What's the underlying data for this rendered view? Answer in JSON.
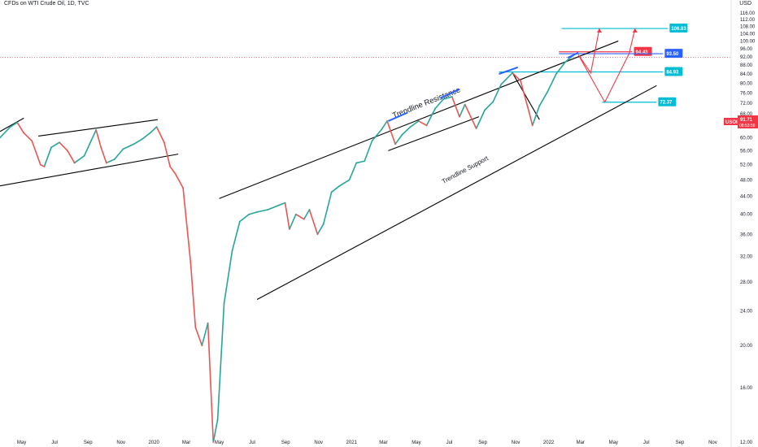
{
  "header": {
    "symbol_title": "CFDs on WTI Crude Oil, 1D, TVC",
    "currency": "USD"
  },
  "price_badge": {
    "label": "USOIL",
    "value": "91.71",
    "countdown": "08:53:59",
    "color": "#f23645"
  },
  "chart_data": {
    "type": "line",
    "title": "CFDs on WTI Crude Oil, 1D, TVC",
    "xlabel": "",
    "ylabel": "",
    "log_scale": true,
    "grid": false,
    "x_ticks": [
      "May",
      "Jul",
      "Sep",
      "Nov",
      "2020",
      "Mar",
      "May",
      "Jul",
      "Sep",
      "Nov",
      "2021",
      "Mar",
      "May",
      "Jul",
      "Sep",
      "Nov",
      "2022",
      "Mar",
      "May",
      "Jul",
      "Sep",
      "Nov"
    ],
    "y_ticks": [
      12.0,
      16.0,
      20.0,
      24.0,
      28.0,
      32.0,
      36.0,
      40.0,
      44.0,
      48.0,
      52.0,
      56.0,
      60.0,
      64.0,
      68.0,
      72.0,
      76.0,
      80.0,
      84.0,
      88.0,
      92.0,
      96.0,
      100.0,
      104.0,
      108.0,
      112.0,
      116.0
    ],
    "ylim": [
      12.0,
      120.0
    ],
    "xlim": [
      "2019-03-22",
      "2022-12-05"
    ],
    "price_series": {
      "name": "",
      "x": [
        "2019-03-22",
        "2019-04-10",
        "2019-04-23",
        "2019-05-05",
        "2019-05-20",
        "2019-06-05",
        "2019-06-12",
        "2019-06-25",
        "2019-07-10",
        "2019-07-25",
        "2019-08-07",
        "2019-08-25",
        "2019-09-16",
        "2019-09-25",
        "2019-10-05",
        "2019-10-20",
        "2019-11-05",
        "2019-11-25",
        "2019-12-10",
        "2019-12-25",
        "2020-01-06",
        "2020-01-20",
        "2020-01-31",
        "2020-02-10",
        "2020-02-24",
        "2020-03-09",
        "2020-03-18",
        "2020-03-30",
        "2020-04-10",
        "2020-04-20",
        "2020-04-28",
        "2020-05-10",
        "2020-05-25",
        "2020-06-08",
        "2020-06-25",
        "2020-07-10",
        "2020-07-30",
        "2020-08-20",
        "2020-08-31",
        "2020-09-08",
        "2020-09-20",
        "2020-10-05",
        "2020-10-15",
        "2020-10-30",
        "2020-11-10",
        "2020-11-25",
        "2020-12-10",
        "2020-12-28",
        "2021-01-10",
        "2021-01-25",
        "2021-02-08",
        "2021-02-25",
        "2021-03-08",
        "2021-03-23",
        "2021-04-05",
        "2021-04-20",
        "2021-05-05",
        "2021-05-20",
        "2021-06-05",
        "2021-06-20",
        "2021-07-06",
        "2021-07-20",
        "2021-07-30",
        "2021-08-20",
        "2021-09-05",
        "2021-09-20",
        "2021-10-05",
        "2021-10-26",
        "2021-11-10",
        "2021-11-26",
        "2021-12-02",
        "2021-12-15",
        "2021-12-30",
        "2022-01-15",
        "2022-02-01",
        "2022-02-15"
      ],
      "y": [
        60.0,
        63.5,
        65.0,
        61.5,
        59.0,
        52.0,
        51.5,
        57.0,
        58.5,
        56.0,
        52.5,
        54.5,
        62.5,
        57.0,
        52.5,
        53.5,
        56.5,
        58.0,
        59.5,
        61.5,
        63.5,
        58.5,
        51.5,
        49.5,
        46.0,
        31.0,
        22.0,
        20.0,
        22.5,
        12.0,
        13.5,
        25.0,
        33.0,
        38.5,
        40.0,
        40.5,
        41.0,
        42.0,
        42.5,
        37.0,
        40.0,
        39.0,
        41.0,
        36.0,
        38.0,
        45.0,
        46.5,
        48.0,
        52.5,
        53.0,
        59.0,
        62.5,
        65.5,
        58.0,
        61.0,
        63.5,
        65.5,
        64.0,
        70.0,
        73.5,
        74.5,
        67.0,
        71.5,
        63.0,
        69.5,
        72.5,
        79.5,
        84.5,
        81.0,
        68.5,
        64.0,
        71.0,
        76.5,
        84.0,
        89.5,
        92.5
      ]
    },
    "trendlines": [
      {
        "name": "Trendline Resistance",
        "from": [
          "2020-05-01",
          43.5
        ],
        "to": [
          "2022-05-10",
          100.0
        ]
      },
      {
        "name": "Trendline Support",
        "from": [
          "2020-07-10",
          25.5
        ],
        "to": [
          "2022-07-20",
          79.0
        ]
      },
      {
        "name": "",
        "from": [
          "2019-03-22",
          46.5
        ],
        "to": [
          "2020-02-15",
          55.0
        ]
      },
      {
        "name": "",
        "from": [
          "2019-06-01",
          60.5
        ],
        "to": [
          "2020-01-08",
          66.0
        ]
      },
      {
        "name": "",
        "from": [
          "2019-03-22",
          62.0
        ],
        "to": [
          "2019-05-05",
          66.5
        ]
      },
      {
        "name": "",
        "from": [
          "2021-03-10",
          56.0
        ],
        "to": [
          "2021-08-25",
          67.0
        ]
      },
      {
        "name": "",
        "from": [
          "2021-10-26",
          84.5
        ],
        "to": [
          "2021-12-15",
          66.0
        ]
      }
    ],
    "levels": [
      {
        "value": 106.83,
        "label": "106.83",
        "color": "#00bcd4"
      },
      {
        "value": 94.43,
        "label": "94.43",
        "color": "#f23645"
      },
      {
        "value": 93.5,
        "label": "93.50",
        "color": "#2962ff"
      },
      {
        "value": 84.93,
        "label": "84.93",
        "color": "#00bcd4"
      },
      {
        "value": 72.37,
        "label": "72.37",
        "color": "#00bcd4"
      }
    ],
    "projections": [
      {
        "color": "#f23645",
        "x": [
          "2022-02-25",
          "2022-03-20",
          "2022-04-05"
        ],
        "y": [
          93.0,
          84.5,
          106.83
        ]
      },
      {
        "color": "#f23645",
        "x": [
          "2022-02-25",
          "2022-04-15",
          "2022-05-30",
          "2022-06-10"
        ],
        "y": [
          93.0,
          72.37,
          93.5,
          106.83
        ]
      }
    ],
    "current_price": 91.71
  },
  "colors": {
    "up": "#26a69a",
    "down": "#ef5350",
    "trendline": "#000000",
    "cyan": "#00bcd4",
    "red": "#f23645",
    "blue": "#2962ff"
  }
}
